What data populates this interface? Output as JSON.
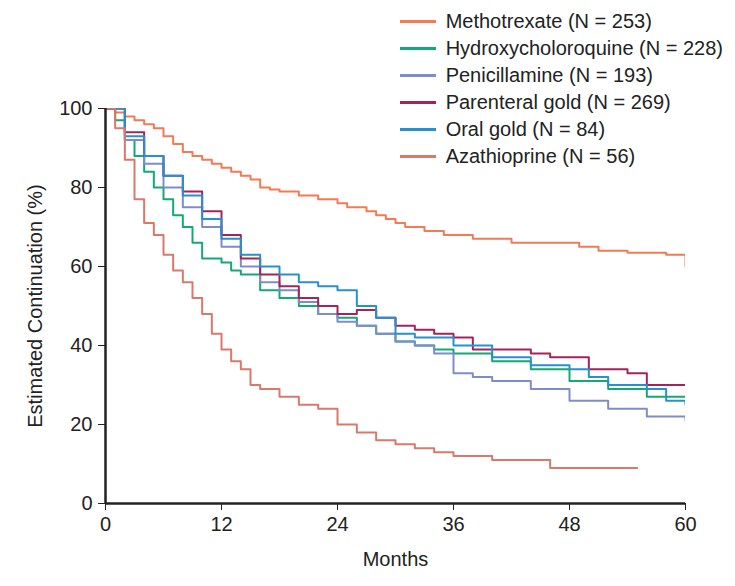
{
  "chart_data": {
    "type": "line",
    "step": true,
    "xlabel": "Months",
    "ylabel": "Estimated Continuation (%)",
    "xlim": [
      0,
      60
    ],
    "xticks": [
      0,
      12,
      24,
      36,
      48,
      60
    ],
    "ylim": [
      0,
      100
    ],
    "yticks": [
      0,
      20,
      40,
      60,
      80,
      100
    ],
    "legend": "top-right",
    "series": [
      {
        "name": "Methotrexate (N = 253)",
        "color": "#f27a55",
        "x": [
          0,
          1,
          2,
          3,
          4,
          5,
          6,
          7,
          8,
          9,
          10,
          11,
          12,
          13,
          14,
          15,
          16,
          17,
          18,
          20,
          22,
          24,
          25,
          27,
          28,
          29,
          30,
          31,
          33,
          35,
          38,
          42,
          49,
          51,
          54,
          58,
          60
        ],
        "values": [
          100,
          99,
          98,
          97,
          96,
          95,
          93,
          91,
          89,
          88,
          87,
          86,
          85,
          84,
          83,
          82,
          80,
          79.5,
          79,
          78,
          77,
          76,
          75,
          74,
          73,
          72,
          71,
          70,
          69,
          68,
          67,
          66,
          65,
          64,
          63.5,
          63,
          60
        ]
      },
      {
        "name": "Hydroxycholoroquine (N = 228)",
        "color": "#14a874",
        "x": [
          0,
          1,
          2,
          3,
          4,
          5,
          6,
          7,
          8,
          9,
          10,
          12,
          13,
          14,
          16,
          18,
          20,
          22,
          24,
          26,
          28,
          30,
          32,
          34,
          36,
          40,
          44,
          48,
          52,
          56,
          60
        ],
        "values": [
          100,
          97,
          92,
          88,
          84,
          80,
          77,
          73,
          70,
          66,
          62,
          61,
          59,
          58,
          54,
          52,
          50,
          48,
          47,
          45,
          43,
          41,
          40,
          39,
          38,
          36,
          34,
          31,
          29,
          27,
          27
        ]
      },
      {
        "name": "Penicillamine (N = 193)",
        "color": "#7f8ccc",
        "x": [
          0,
          2,
          4,
          6,
          8,
          10,
          12,
          14,
          16,
          18,
          20,
          22,
          24,
          26,
          28,
          30,
          32,
          34,
          36,
          38,
          40,
          44,
          48,
          52,
          56,
          60
        ],
        "values": [
          100,
          92,
          86,
          80,
          75,
          70,
          65,
          60,
          56,
          54,
          51,
          48,
          46,
          45,
          43,
          41,
          40,
          38,
          33,
          32,
          31,
          29,
          26,
          24,
          22,
          21
        ]
      },
      {
        "name": "Parenteral gold (N = 269)",
        "color": "#a3245c",
        "x": [
          0,
          2,
          4,
          6,
          8,
          10,
          12,
          14,
          16,
          18,
          20,
          22,
          24,
          26,
          28,
          30,
          32,
          34,
          36,
          38,
          44,
          46,
          50,
          54,
          56,
          60
        ],
        "values": [
          100,
          94,
          88,
          83,
          79,
          74,
          68,
          62,
          58,
          55,
          52,
          50,
          48,
          49,
          47,
          45,
          44,
          43,
          42,
          39,
          38,
          37,
          34,
          33,
          30,
          30
        ]
      },
      {
        "name": "Oral gold (N = 84)",
        "color": "#2592cf",
        "x": [
          0,
          2,
          4,
          6,
          8,
          10,
          12,
          14,
          16,
          18,
          20,
          22,
          24,
          26,
          28,
          30,
          32,
          36,
          40,
          44,
          48,
          50,
          52,
          56,
          58,
          60
        ],
        "values": [
          100,
          93,
          88,
          83,
          78,
          72,
          67,
          63,
          60,
          58,
          56,
          55,
          54,
          50,
          47,
          43,
          42,
          40,
          37,
          35,
          34,
          32,
          30,
          29,
          26,
          25
        ]
      },
      {
        "name": "Azathioprine (N = 56)",
        "color": "#d9786b",
        "x": [
          0,
          1,
          2,
          3,
          4,
          5,
          6,
          7,
          8,
          9,
          10,
          11,
          12,
          13,
          14,
          15,
          16,
          18,
          20,
          22,
          24,
          26,
          28,
          30,
          32,
          34,
          36,
          40,
          46,
          55
        ],
        "values": [
          100,
          95,
          87,
          77,
          71,
          68,
          63,
          59,
          56,
          52,
          48,
          43,
          39,
          36,
          34,
          30,
          29,
          27,
          25,
          24,
          20,
          18,
          16,
          15,
          14,
          13,
          12,
          11,
          9,
          9
        ]
      }
    ]
  }
}
